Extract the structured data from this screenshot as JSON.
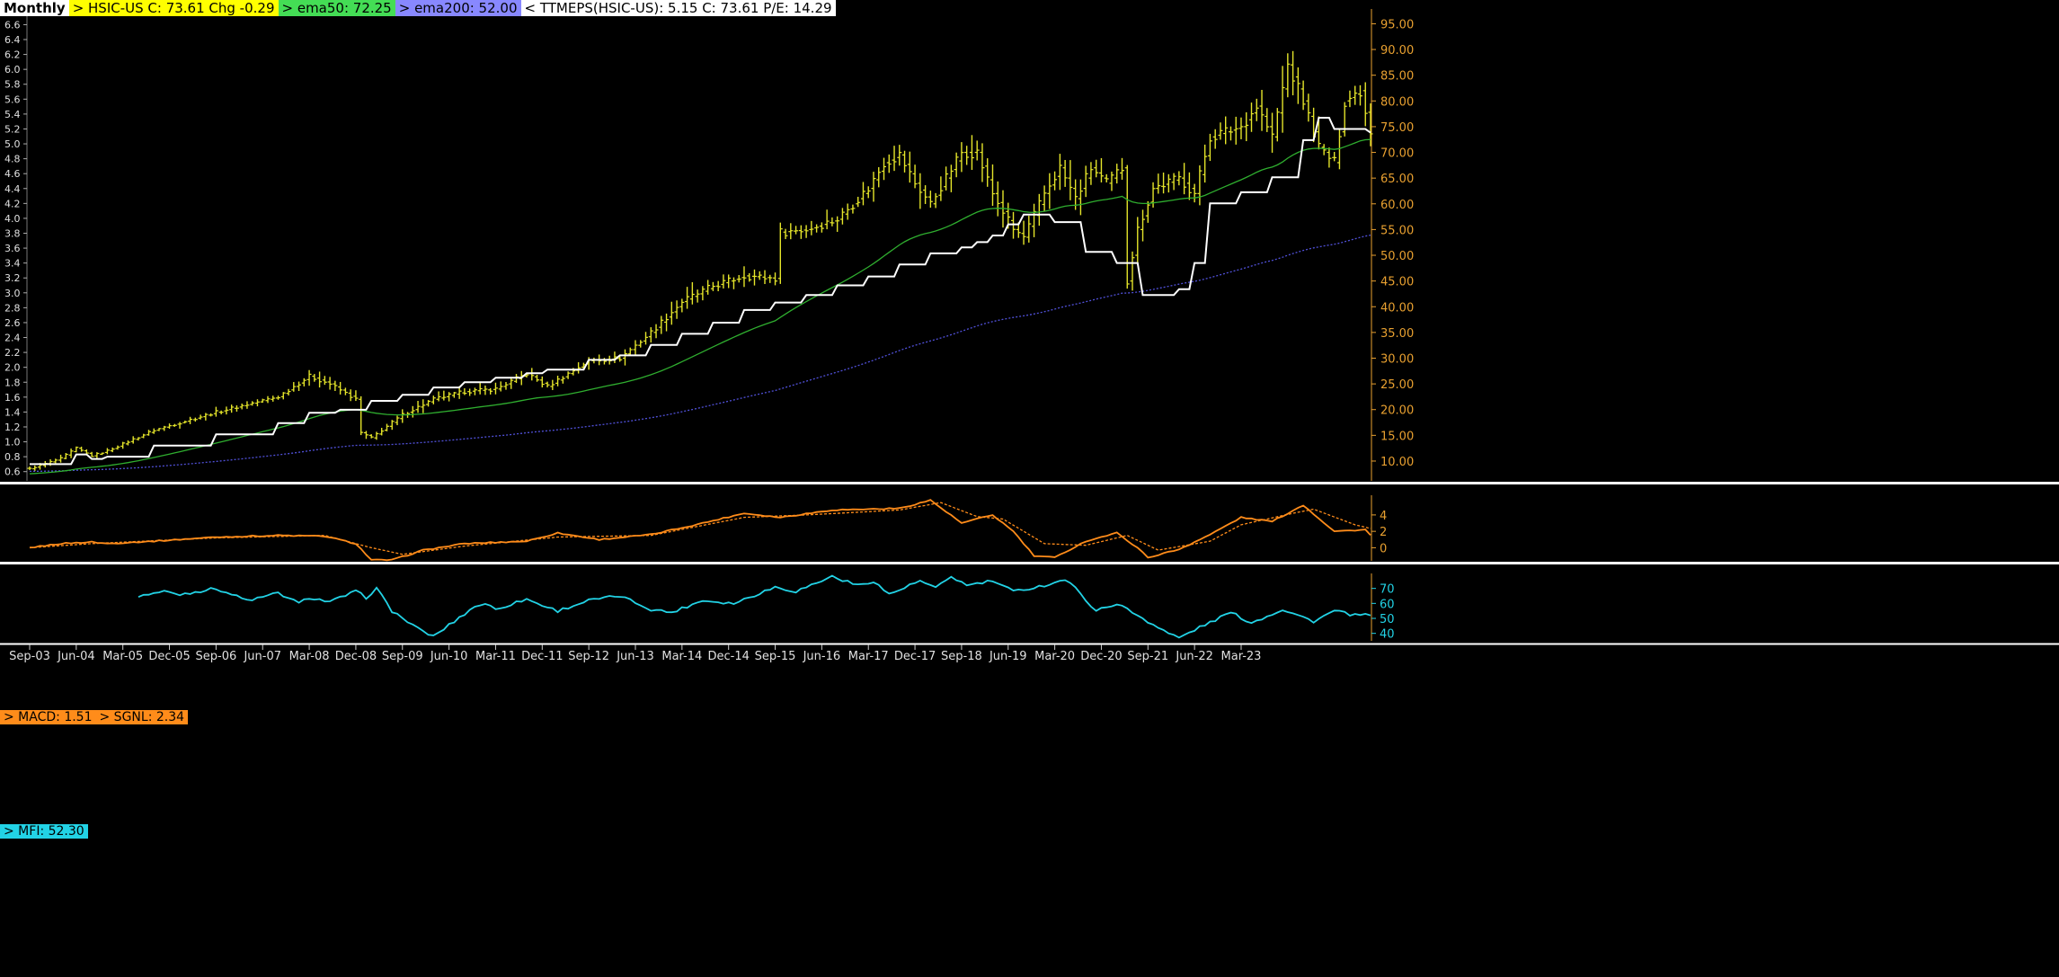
{
  "legend": {
    "period": "Monthly",
    "price": "> HSIC-US  C: 73.61  Chg -0.29",
    "ema50": "> ema50: 72.25",
    "ema200": "> ema200: 52.00",
    "ttmeps": "< TTMEPS(HSIC-US): 5.15  C: 73.61  P/E: 14.29"
  },
  "macd_legend": {
    "macd": "> MACD: 1.51",
    "signal": "> SGNL: 2.34"
  },
  "mfi_legend": {
    "mfi": "> MFI: 52.30"
  },
  "colors": {
    "background": "#000000",
    "price_bars": "#e5e52a",
    "eps_line": "#ffffff",
    "ema50": "#2fae2f",
    "ema200": "#5050d8",
    "macd": "#ff8c1a",
    "mfi": "#22d3e6",
    "axis": "#e8a030",
    "divider": "#ffffff"
  },
  "chart_data": [
    {
      "type": "ohlc",
      "title": "HSIC-US Monthly",
      "right_axis_ticks": [
        "10.00",
        "15.00",
        "20.00",
        "25.00",
        "30.00",
        "35.00",
        "40.00",
        "45.00",
        "50.00",
        "55.00",
        "60.00",
        "65.00",
        "70.00",
        "75.00",
        "80.00",
        "85.00",
        "90.00",
        "95.00"
      ],
      "left_axis_ticks": [
        "0.6",
        "0.8",
        "1.0",
        "1.2",
        "1.4",
        "1.6",
        "1.8",
        "2.0",
        "2.2",
        "2.4",
        "2.6",
        "2.8",
        "3.0",
        "3.2",
        "3.4",
        "3.6",
        "3.8",
        "4.0",
        "4.2",
        "4.4",
        "4.6",
        "4.8",
        "5.0",
        "5.2",
        "5.4",
        "5.6",
        "5.8",
        "6.0",
        "6.2",
        "6.4",
        "6.6"
      ],
      "ylim_price": [
        6.5,
        97
      ],
      "ylim_eps": [
        0.5,
        6.75
      ],
      "x_ticks": [
        "Sep-03",
        "Jun-04",
        "Mar-05",
        "Dec-05",
        "Sep-06",
        "Jun-07",
        "Mar-08",
        "Dec-08",
        "Sep-09",
        "Jun-10",
        "Mar-11",
        "Dec-11",
        "Sep-12",
        "Jun-13",
        "Mar-14",
        "Dec-14",
        "Sep-15",
        "Jun-16",
        "Mar-17",
        "Dec-17",
        "Sep-18",
        "Jun-19",
        "Mar-20",
        "Dec-20",
        "Sep-21",
        "Jun-22",
        "Mar-23"
      ],
      "price_anchors": [
        [
          0,
          8.5
        ],
        [
          6,
          10.5
        ],
        [
          9,
          12.5
        ],
        [
          12,
          11
        ],
        [
          15,
          12
        ],
        [
          24,
          16
        ],
        [
          36,
          19.5
        ],
        [
          48,
          22.5
        ],
        [
          54,
          26.5
        ],
        [
          58,
          25
        ],
        [
          63,
          22
        ],
        [
          64,
          15.5
        ],
        [
          66,
          14.5
        ],
        [
          72,
          19
        ],
        [
          78,
          22
        ],
        [
          84,
          23.5
        ],
        [
          90,
          24
        ],
        [
          96,
          27
        ],
        [
          100,
          24.5
        ],
        [
          108,
          29.5
        ],
        [
          114,
          30
        ],
        [
          120,
          35
        ],
        [
          126,
          41
        ],
        [
          132,
          44
        ],
        [
          138,
          46
        ],
        [
          144,
          45.5
        ],
        [
          145,
          54.5
        ],
        [
          150,
          55
        ],
        [
          156,
          57
        ],
        [
          162,
          63
        ],
        [
          165,
          68
        ],
        [
          168,
          69.5
        ],
        [
          171,
          64
        ],
        [
          174,
          60
        ],
        [
          177,
          65
        ],
        [
          180,
          70
        ],
        [
          183,
          70
        ],
        [
          186,
          62
        ],
        [
          190,
          55
        ],
        [
          192,
          53.5
        ],
        [
          196,
          62
        ],
        [
          199,
          67
        ],
        [
          202,
          61
        ],
        [
          205,
          67
        ],
        [
          208,
          64
        ],
        [
          211,
          67
        ],
        [
          212,
          45
        ],
        [
          214,
          55
        ],
        [
          217,
          63
        ],
        [
          222,
          65
        ],
        [
          225,
          62
        ],
        [
          228,
          73
        ],
        [
          234,
          75
        ],
        [
          237,
          79
        ],
        [
          240,
          73
        ],
        [
          243,
          87
        ],
        [
          246,
          80
        ],
        [
          249,
          71
        ],
        [
          252,
          68
        ],
        [
          254,
          80
        ],
        [
          257,
          82
        ],
        [
          259,
          73.6
        ]
      ],
      "ema50": {
        "name": "ema50",
        "last": 72.25
      },
      "ema200": {
        "name": "ema200",
        "last": 52.0
      },
      "eps_steps": [
        [
          0,
          0.7
        ],
        [
          9,
          0.83
        ],
        [
          12,
          0.77
        ],
        [
          15,
          0.8
        ],
        [
          24,
          0.95
        ],
        [
          36,
          1.1
        ],
        [
          48,
          1.25
        ],
        [
          54,
          1.39
        ],
        [
          60,
          1.43
        ],
        [
          66,
          1.55
        ],
        [
          72,
          1.63
        ],
        [
          78,
          1.73
        ],
        [
          84,
          1.8
        ],
        [
          90,
          1.86
        ],
        [
          96,
          1.92
        ],
        [
          100,
          1.97
        ],
        [
          108,
          2.1
        ],
        [
          114,
          2.16
        ],
        [
          120,
          2.3
        ],
        [
          126,
          2.45
        ],
        [
          132,
          2.6
        ],
        [
          138,
          2.77
        ],
        [
          144,
          2.87
        ],
        [
          150,
          2.97
        ],
        [
          156,
          3.1
        ],
        [
          162,
          3.22
        ],
        [
          168,
          3.38
        ],
        [
          174,
          3.53
        ],
        [
          180,
          3.61
        ],
        [
          183,
          3.68
        ],
        [
          186,
          3.77
        ],
        [
          189,
          3.92
        ],
        [
          192,
          4.05
        ],
        [
          198,
          3.95
        ],
        [
          204,
          3.55
        ],
        [
          210,
          3.4
        ],
        [
          215,
          2.97
        ],
        [
          222,
          3.05
        ],
        [
          225,
          3.4
        ],
        [
          228,
          4.2
        ],
        [
          234,
          4.35
        ],
        [
          240,
          4.55
        ],
        [
          246,
          5.05
        ],
        [
          249,
          5.35
        ],
        [
          252,
          5.2
        ],
        [
          259,
          5.15
        ]
      ]
    },
    {
      "type": "line",
      "title": "MACD",
      "axis_ticks": [
        "0",
        "2",
        "4"
      ],
      "ylim": [
        -1.6,
        6.4
      ],
      "macd_anchors": [
        [
          0,
          0
        ],
        [
          6,
          0.5
        ],
        [
          12,
          0.7
        ],
        [
          15,
          0.5
        ],
        [
          24,
          0.8
        ],
        [
          36,
          1.3
        ],
        [
          48,
          1.5
        ],
        [
          57,
          1.4
        ],
        [
          63,
          0.5
        ],
        [
          66,
          -1.5
        ],
        [
          70,
          -1.5
        ],
        [
          76,
          -0.3
        ],
        [
          84,
          0.5
        ],
        [
          96,
          0.8
        ],
        [
          102,
          1.8
        ],
        [
          110,
          1.0
        ],
        [
          120,
          1.6
        ],
        [
          130,
          3.0
        ],
        [
          138,
          4.2
        ],
        [
          145,
          3.7
        ],
        [
          155,
          4.6
        ],
        [
          168,
          4.8
        ],
        [
          174,
          5.8
        ],
        [
          180,
          3.0
        ],
        [
          186,
          4.0
        ],
        [
          190,
          2.0
        ],
        [
          194,
          -1.0
        ],
        [
          198,
          -1.2
        ],
        [
          204,
          0.8
        ],
        [
          210,
          1.8
        ],
        [
          214,
          0.0
        ],
        [
          216,
          -1.2
        ],
        [
          222,
          -0.2
        ],
        [
          228,
          1.6
        ],
        [
          234,
          3.7
        ],
        [
          240,
          3.2
        ],
        [
          246,
          5.2
        ],
        [
          252,
          2.0
        ],
        [
          258,
          2.2
        ],
        [
          259,
          1.51
        ]
      ],
      "signal_anchors": [
        [
          0,
          0
        ],
        [
          12,
          0.5
        ],
        [
          36,
          1.2
        ],
        [
          57,
          1.5
        ],
        [
          66,
          0.0
        ],
        [
          72,
          -0.8
        ],
        [
          84,
          0.2
        ],
        [
          102,
          1.3
        ],
        [
          120,
          1.5
        ],
        [
          138,
          3.7
        ],
        [
          150,
          4.0
        ],
        [
          168,
          4.6
        ],
        [
          176,
          5.5
        ],
        [
          183,
          3.8
        ],
        [
          188,
          3.5
        ],
        [
          196,
          0.5
        ],
        [
          204,
          0.3
        ],
        [
          212,
          1.5
        ],
        [
          218,
          -0.3
        ],
        [
          228,
          0.8
        ],
        [
          234,
          2.8
        ],
        [
          244,
          4.2
        ],
        [
          248,
          4.7
        ],
        [
          256,
          2.8
        ],
        [
          259,
          2.34
        ]
      ],
      "series": [
        {
          "name": "MACD",
          "last": 1.51
        },
        {
          "name": "SGNL",
          "last": 2.34
        }
      ]
    },
    {
      "type": "line",
      "title": "MFI",
      "axis_ticks": [
        "40",
        "50",
        "60",
        "70"
      ],
      "ylim": [
        35,
        80
      ],
      "mfi_anchors": [
        [
          21,
          65
        ],
        [
          26,
          68
        ],
        [
          29,
          66
        ],
        [
          36,
          70
        ],
        [
          42,
          62
        ],
        [
          45,
          64
        ],
        [
          48,
          67
        ],
        [
          52,
          60
        ],
        [
          54,
          64
        ],
        [
          58,
          61
        ],
        [
          63,
          68
        ],
        [
          65,
          64
        ],
        [
          67,
          70
        ],
        [
          70,
          55
        ],
        [
          75,
          43
        ],
        [
          78,
          38
        ],
        [
          86,
          58
        ],
        [
          88,
          60
        ],
        [
          90,
          56
        ],
        [
          96,
          63
        ],
        [
          98,
          60
        ],
        [
          102,
          55
        ],
        [
          108,
          62
        ],
        [
          114,
          65
        ],
        [
          120,
          56
        ],
        [
          124,
          54
        ],
        [
          130,
          62
        ],
        [
          136,
          60
        ],
        [
          144,
          71
        ],
        [
          148,
          68
        ],
        [
          155,
          78
        ],
        [
          160,
          72
        ],
        [
          163,
          75
        ],
        [
          166,
          66
        ],
        [
          172,
          75
        ],
        [
          175,
          70
        ],
        [
          178,
          78
        ],
        [
          181,
          72
        ],
        [
          186,
          75
        ],
        [
          190,
          68
        ],
        [
          196,
          72
        ],
        [
          200,
          76
        ],
        [
          202,
          70
        ],
        [
          206,
          55
        ],
        [
          210,
          60
        ],
        [
          214,
          52
        ],
        [
          220,
          40
        ],
        [
          222,
          37
        ],
        [
          226,
          44
        ],
        [
          232,
          54
        ],
        [
          236,
          47
        ],
        [
          242,
          56
        ],
        [
          248,
          48
        ],
        [
          252,
          55
        ],
        [
          256,
          52
        ],
        [
          259,
          52.3
        ]
      ],
      "series": [
        {
          "name": "MFI",
          "last": 52.3
        }
      ]
    }
  ]
}
